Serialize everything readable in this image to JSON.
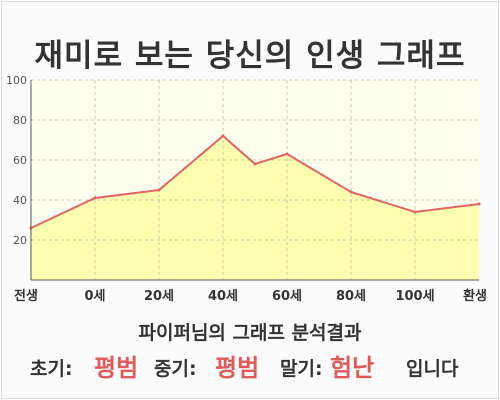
{
  "chart_data": {
    "type": "area",
    "title": "재미로 보는 당신의 인생 그래프",
    "categories": [
      "전생",
      "0세",
      "20세",
      "40세",
      "60세",
      "80세",
      "100세",
      "환생"
    ],
    "x": [
      -20,
      0,
      20,
      40,
      50,
      60,
      80,
      100,
      120
    ],
    "values": [
      26,
      41,
      45,
      72,
      58,
      63,
      44,
      34,
      38
    ],
    "ylim": [
      0,
      100
    ],
    "yticks": [
      20,
      40,
      60,
      80,
      100
    ],
    "grid": true,
    "fill_color": "#ffffb0",
    "line_color": "#e06666"
  },
  "summary": {
    "heading": "파이퍼님의 그래프 분석결과",
    "early_label": "초기:",
    "early_value": "평범",
    "mid_label": "중기:",
    "mid_value": "평범",
    "late_label": "말기:",
    "late_value": "험난",
    "ending": "입니다"
  }
}
